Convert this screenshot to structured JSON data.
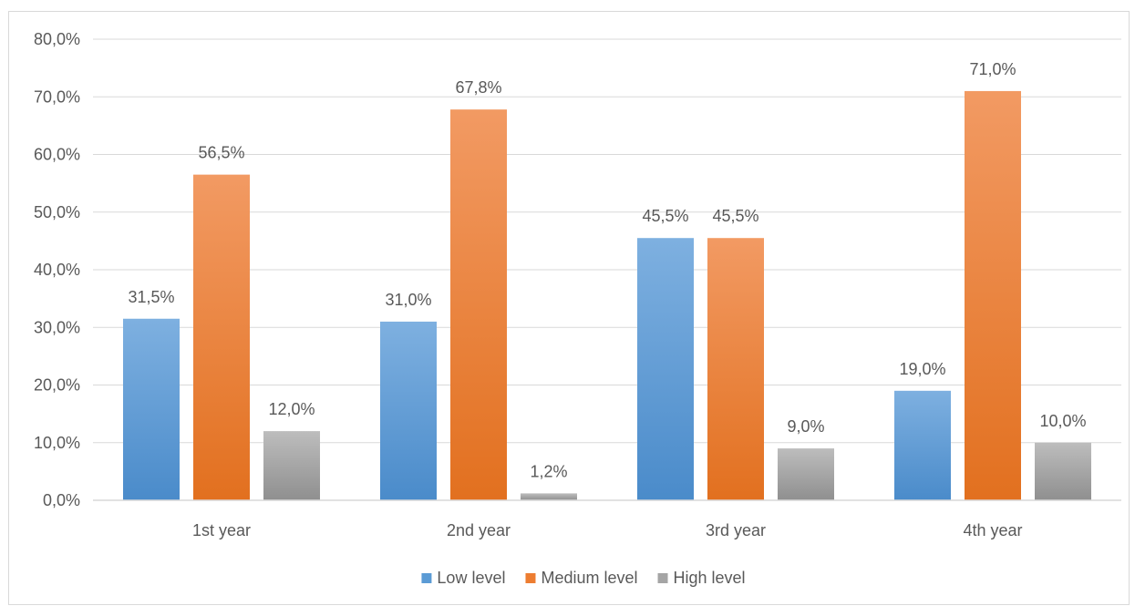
{
  "chart_data": {
    "type": "bar",
    "categories": [
      "1st year",
      "2nd year",
      "3rd year",
      "4th year"
    ],
    "series": [
      {
        "name": "Low level",
        "values": [
          31.5,
          31.0,
          45.5,
          19.0
        ],
        "labels": [
          "31,5%",
          "31,0%",
          "45,5%",
          "19,0%"
        ],
        "color": "#5b9bd5",
        "color_light": "#7eb0e0",
        "color_dark": "#4a8bca"
      },
      {
        "name": "Medium level",
        "values": [
          56.5,
          67.8,
          45.5,
          71.0
        ],
        "labels": [
          "56,5%",
          "67,8%",
          "45,5%",
          "71,0%"
        ],
        "color": "#ed7d31",
        "color_light": "#f29a63",
        "color_dark": "#e2701f"
      },
      {
        "name": "High level",
        "values": [
          12.0,
          1.2,
          9.0,
          10.0
        ],
        "labels": [
          "12,0%",
          "1,2%",
          "9,0%",
          "10,0%"
        ],
        "color": "#a5a5a5",
        "color_light": "#bdbdbd",
        "color_dark": "#8f8f8f"
      }
    ],
    "y_ticks": [
      0,
      10,
      20,
      30,
      40,
      50,
      60,
      70,
      80
    ],
    "y_tick_labels": [
      "0,0%",
      "10,0%",
      "20,0%",
      "30,0%",
      "40,0%",
      "50,0%",
      "60,0%",
      "70,0%",
      "80,0%"
    ],
    "ylim": [
      0,
      80
    ],
    "title": "",
    "xlabel": "",
    "ylabel": "",
    "grid": true,
    "legend_position": "bottom"
  }
}
